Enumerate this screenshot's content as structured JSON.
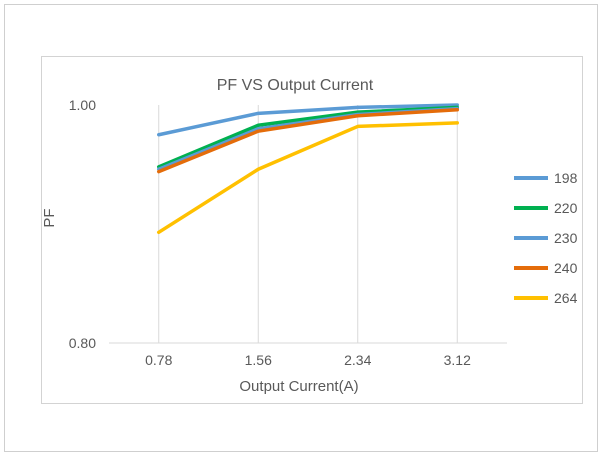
{
  "chart_data": {
    "type": "line",
    "title": "PF VS Output Current",
    "xlabel": "Output Current(A)",
    "ylabel": "PF",
    "categories": [
      "0.78",
      "1.56",
      "2.34",
      "3.12"
    ],
    "ylim": [
      0.8,
      1.0
    ],
    "y_ticks": [
      "0.80",
      "1.00"
    ],
    "grid": "vertical",
    "legend_position": "right",
    "series": [
      {
        "name": "198",
        "color": "#5b9bd5",
        "values": [
          0.975,
          0.993,
          0.998,
          1.0
        ]
      },
      {
        "name": "220",
        "color": "#00b050",
        "values": [
          0.948,
          0.983,
          0.994,
          0.998
        ]
      },
      {
        "name": "230",
        "color": "#5b9bd5",
        "values": [
          0.946,
          0.98,
          0.992,
          0.997
        ]
      },
      {
        "name": "240",
        "color": "#e46c0a",
        "values": [
          0.944,
          0.978,
          0.991,
          0.996
        ]
      },
      {
        "name": "264",
        "color": "#ffc000",
        "values": [
          0.893,
          0.946,
          0.982,
          0.985
        ]
      }
    ]
  }
}
